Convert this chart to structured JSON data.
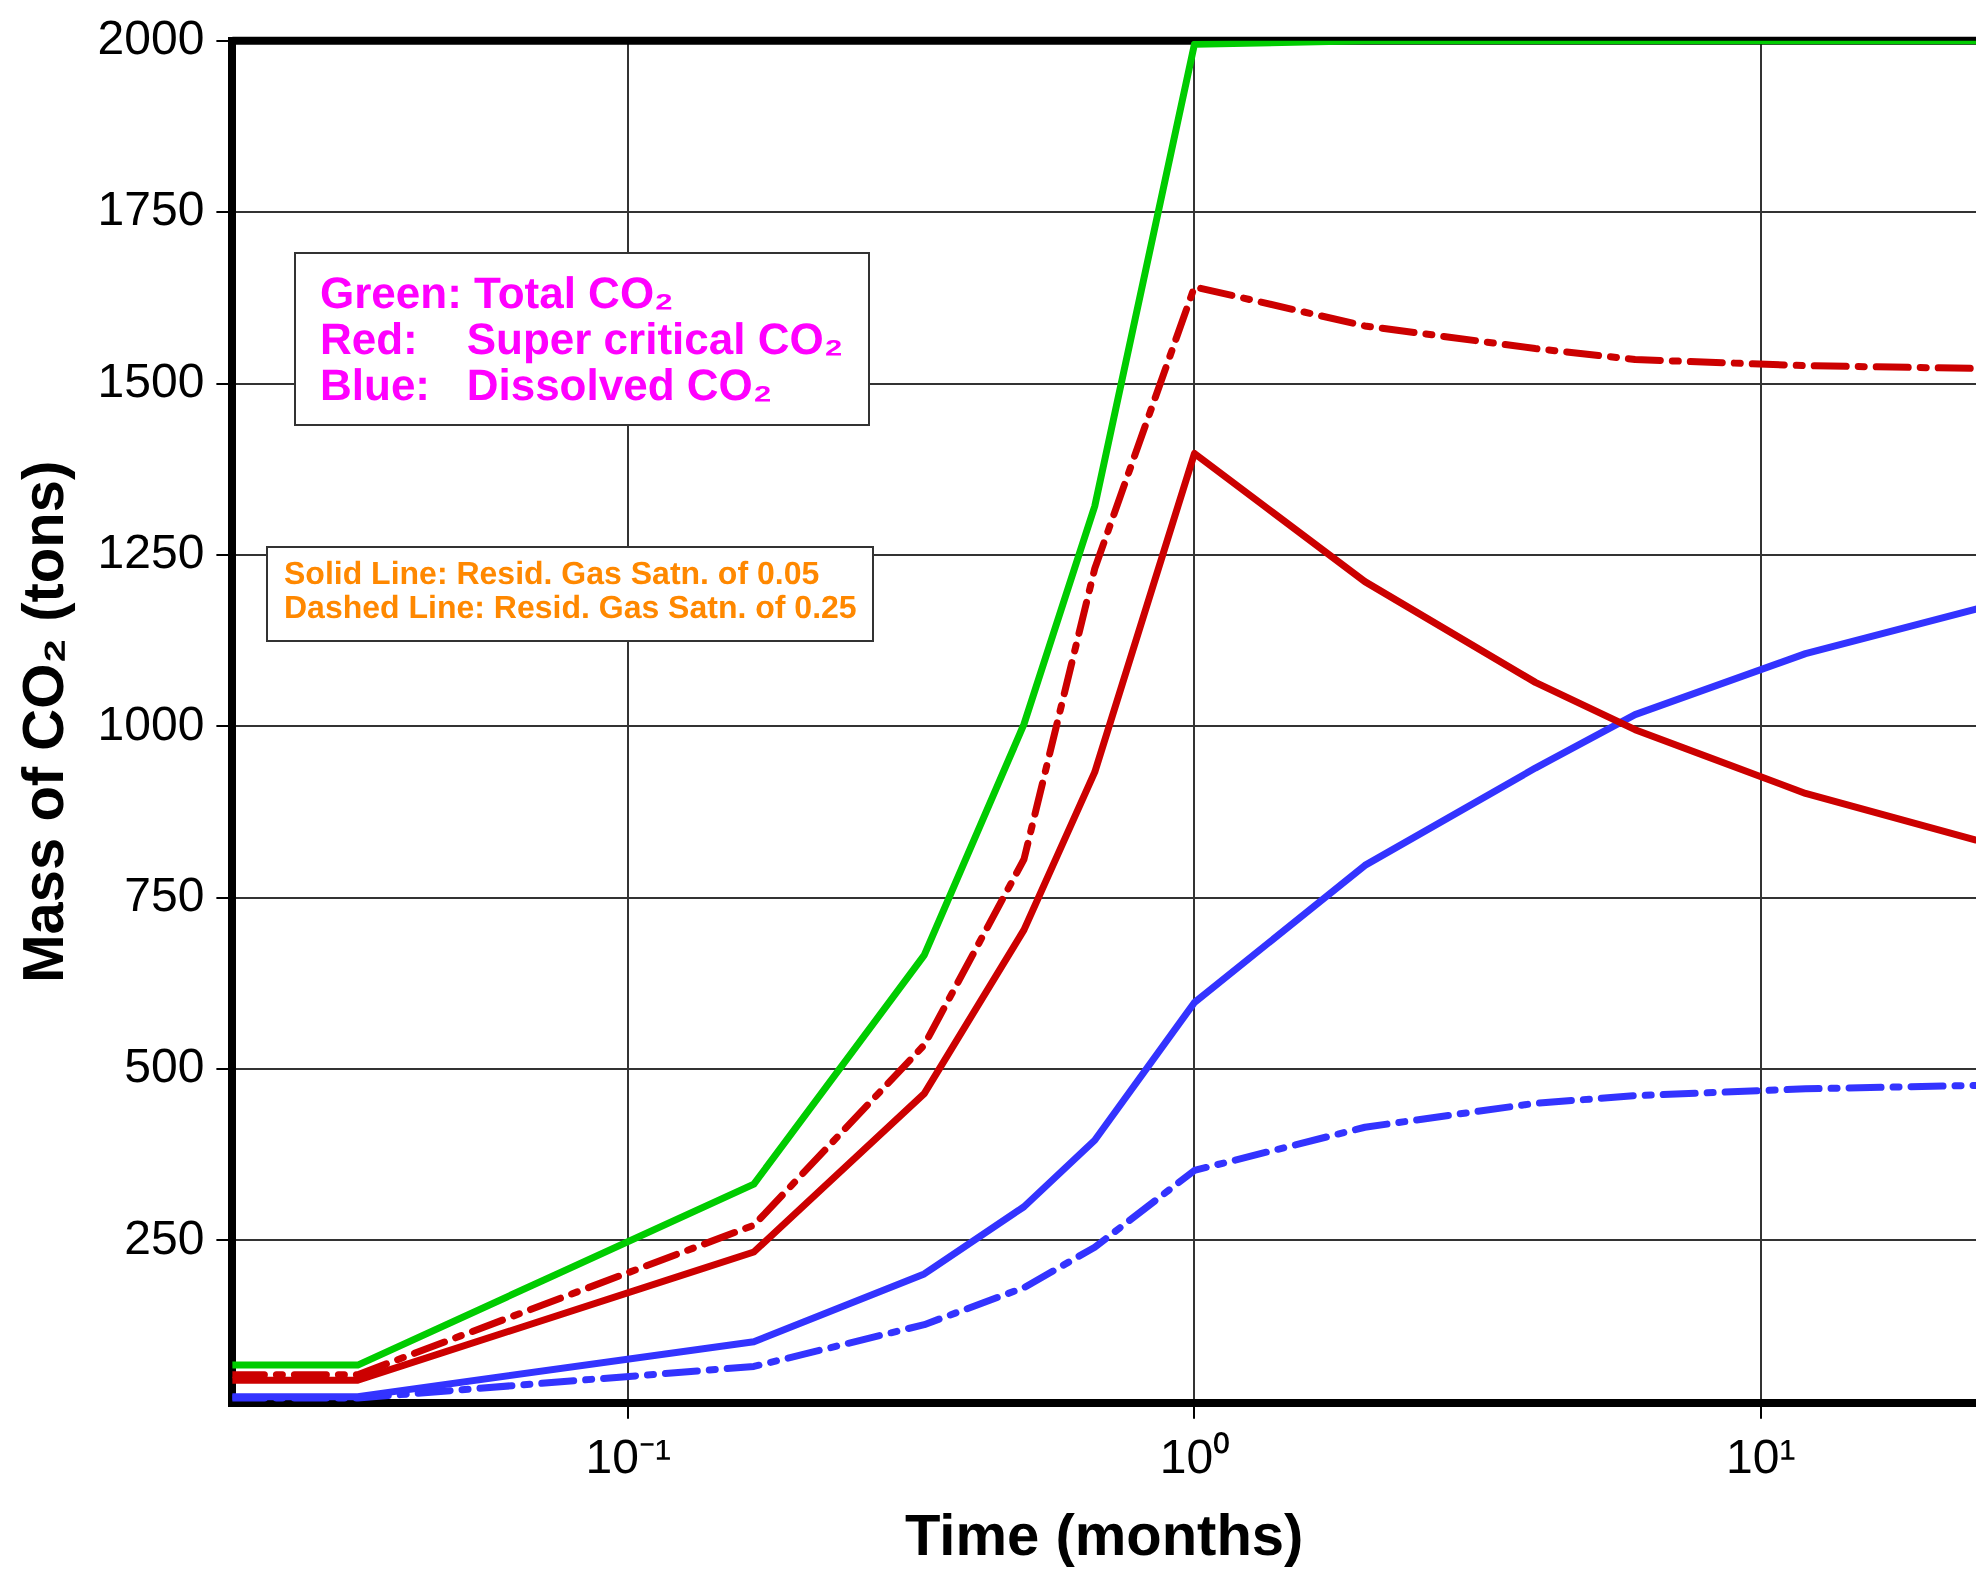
{
  "chart_data": {
    "type": "line",
    "xlabel": "Time (months)",
    "ylabel": "Mass of CO₂ (tons)",
    "x": [
      0.02,
      0.0333,
      0.1667,
      0.3333,
      0.5,
      0.6667,
      1,
      2,
      4,
      6,
      12,
      24
    ],
    "series": [
      {
        "color": "#00cc00",
        "line_style": "solid",
        "values": [
          68,
          68,
          332,
          666,
          1003,
          1321,
          1995,
          2000,
          2000,
          2000,
          2000,
          2000
        ]
      },
      {
        "color": "#cc0000",
        "line_style": "dashed",
        "values": [
          54,
          54,
          272,
          535,
          806,
          1230,
          1641,
          1584,
          1551,
          1535,
          1526,
          1522
        ]
      },
      {
        "color": "#cc0000",
        "line_style": "solid",
        "values": [
          46,
          46,
          233,
          464,
          703,
          933,
          1398,
          1211,
          1064,
          995,
          902,
          834
        ]
      },
      {
        "color": "#3333ff",
        "line_style": "solid",
        "values": [
          22,
          22,
          102,
          201,
          299,
          396,
          597,
          797,
          939,
          1017,
          1106,
          1171
        ]
      },
      {
        "color": "#3333ff",
        "line_style": "dashed",
        "values": [
          20,
          20,
          66,
          127,
          181,
          240,
          352,
          415,
          450,
          461,
          471,
          476
        ]
      }
    ],
    "log": "x",
    "xlim": [
      0.02,
      24
    ],
    "xticks": [
      {
        "value": 0.1,
        "label": "10⁻¹"
      },
      {
        "value": 1,
        "label": "10⁰"
      },
      {
        "value": 10,
        "label": "10¹"
      }
    ],
    "ylim": [
      13,
      2000
    ],
    "yticks": [
      250,
      500,
      750,
      1000,
      1250,
      1500,
      1750,
      2000
    ],
    "grid": true,
    "legend": false,
    "marker": "none",
    "annotations": [
      "Green: Total CO₂",
      "Red:    Super critical CO₂",
      "Blue:   Dissolved CO₂",
      "Solid Line: Resid. Gas Satn. of 0.05",
      "Dashed Line: Resid. Gas Satn. of 0.25"
    ]
  }
}
